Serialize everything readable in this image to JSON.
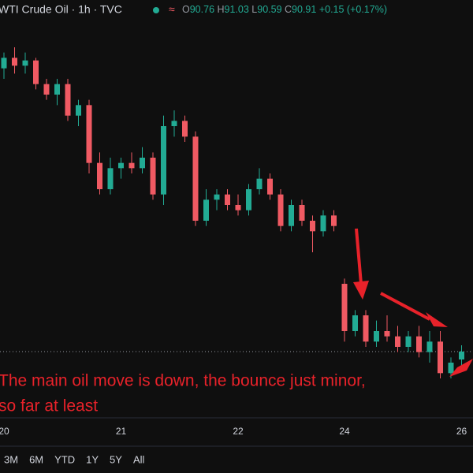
{
  "chart_data": {
    "type": "candlestick",
    "title": "WTI Crude Oil · 1h · TVC",
    "ohlc_header": {
      "open_label": "O",
      "open": 90.76,
      "high_label": "H",
      "high": 91.03,
      "low_label": "L",
      "low": 90.59,
      "close_label": "C",
      "close": 90.91,
      "change": "+0.15 (+0.17%)"
    },
    "annotation": [
      "The main oil move is down, the bounce just minor,",
      "so far at least"
    ],
    "categories": [
      "20",
      null,
      null,
      null,
      null,
      null,
      null,
      null,
      null,
      null,
      null,
      "21",
      null,
      null,
      null,
      null,
      null,
      null,
      null,
      null,
      null,
      null,
      "22",
      null,
      null,
      null,
      null,
      null,
      null,
      null,
      null,
      null,
      "24",
      null,
      null,
      null,
      null,
      null,
      null,
      null,
      null,
      null,
      null,
      "26"
    ],
    "open": [
      96.3,
      96.5,
      96.35,
      96.45,
      96.0,
      95.8,
      96.0,
      95.4,
      95.6,
      94.5,
      94.0,
      94.4,
      94.5,
      94.4,
      94.6,
      93.9,
      95.2,
      95.3,
      95.0,
      93.4,
      93.8,
      93.9,
      93.7,
      93.6,
      94.0,
      94.2,
      93.9,
      93.3,
      93.7,
      93.4,
      93.2,
      93.5,
      92.2,
      91.3,
      91.6,
      91.1,
      91.3,
      91.2,
      91.0,
      91.2,
      90.9,
      91.1,
      90.5,
      90.76
    ],
    "high": [
      96.6,
      96.7,
      96.6,
      96.5,
      96.1,
      96.1,
      96.1,
      95.7,
      95.7,
      94.7,
      94.6,
      94.6,
      94.7,
      94.8,
      94.7,
      95.4,
      95.5,
      95.4,
      95.1,
      94.0,
      94.0,
      94.0,
      93.9,
      94.1,
      94.4,
      94.3,
      94.0,
      93.8,
      93.8,
      93.5,
      93.6,
      93.6,
      92.3,
      91.7,
      91.7,
      91.5,
      91.6,
      91.4,
      91.3,
      91.4,
      91.3,
      91.3,
      90.8,
      91.03
    ],
    "low": [
      96.1,
      96.2,
      96.2,
      95.9,
      95.7,
      95.6,
      95.3,
      95.2,
      94.3,
      93.9,
      93.9,
      94.2,
      94.3,
      94.3,
      93.8,
      93.7,
      95.0,
      94.9,
      93.3,
      93.3,
      93.6,
      93.6,
      93.5,
      93.5,
      93.9,
      93.8,
      93.2,
      93.2,
      93.3,
      92.8,
      93.1,
      93.2,
      91.1,
      91.2,
      91.0,
      91.0,
      91.1,
      90.9,
      90.9,
      90.8,
      90.7,
      90.4,
      90.4,
      90.59
    ],
    "close": [
      96.5,
      96.35,
      96.45,
      96.0,
      95.8,
      96.0,
      95.4,
      95.6,
      94.5,
      94.0,
      94.4,
      94.5,
      94.4,
      94.6,
      93.9,
      95.2,
      95.3,
      95.0,
      93.4,
      93.8,
      93.9,
      93.7,
      93.6,
      94.0,
      94.2,
      93.9,
      93.3,
      93.7,
      93.4,
      93.2,
      93.5,
      93.3,
      91.3,
      91.6,
      91.1,
      91.3,
      91.2,
      91.0,
      91.2,
      90.9,
      91.1,
      90.5,
      90.7,
      90.91
    ],
    "up_color": "#22ab94",
    "down_color": "#f05a63",
    "annotation_color": "#e8222a",
    "ylim": [
      89.5,
      97.6
    ]
  },
  "toolbar": {
    "ranges": [
      "3M",
      "6M",
      "YTD",
      "1Y",
      "5Y",
      "All"
    ]
  }
}
